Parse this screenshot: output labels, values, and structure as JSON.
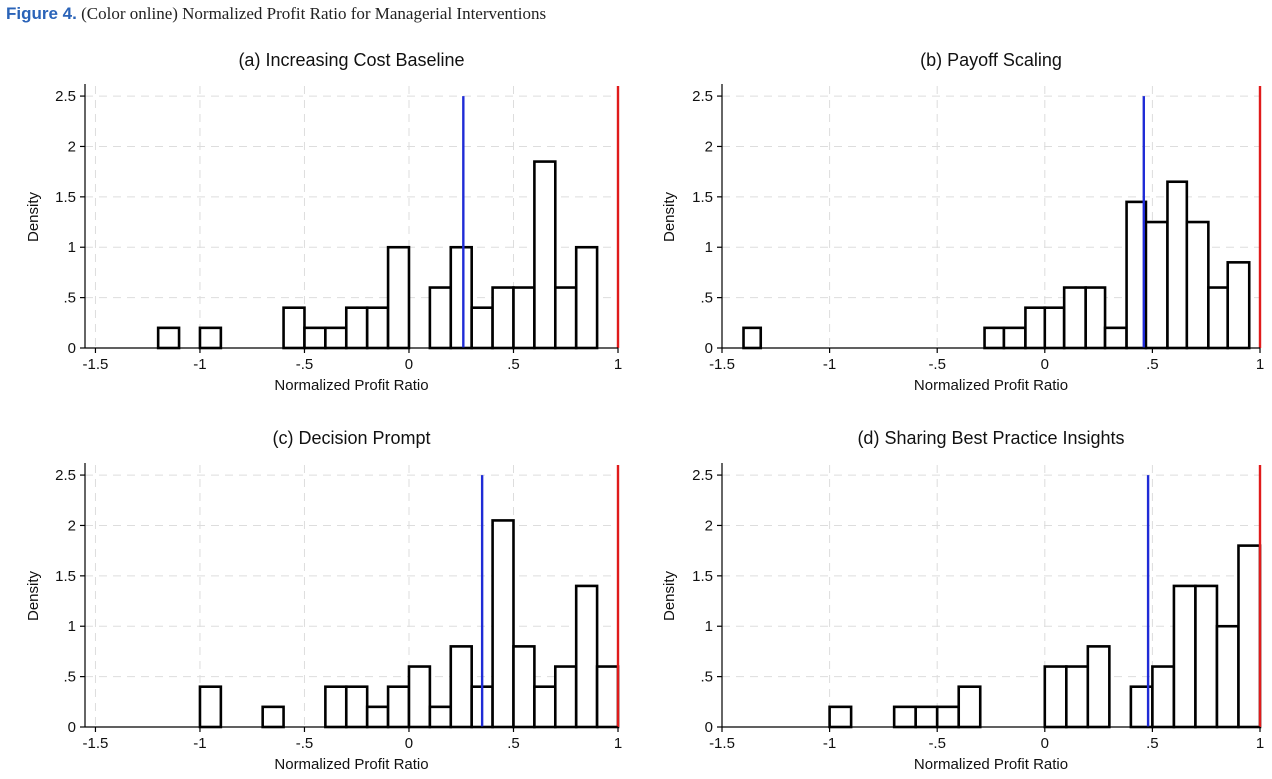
{
  "figure": {
    "label": "Figure 4.",
    "caption": "(Color online) Normalized Profit Ratio for Managerial Interventions"
  },
  "colors": {
    "mean_line": "#1f2bd6",
    "reference_line": "#e01b1b",
    "bar_stroke": "#000000",
    "grid": "#dddddd"
  },
  "chart_data": [
    {
      "type": "bar",
      "title": "(a) Increasing Cost Baseline",
      "xlabel": "Normalized Profit Ratio",
      "ylabel": "Density",
      "xlim": [
        -1.55,
        1.0
      ],
      "ylim": [
        0,
        2.6
      ],
      "xticks": [
        -1.5,
        -1,
        -0.5,
        0,
        0.5,
        1
      ],
      "xtick_labels": [
        "-1.5",
        "-1",
        "-.5",
        "0",
        ".5",
        "1"
      ],
      "yticks": [
        0,
        0.5,
        1,
        1.5,
        2,
        2.5
      ],
      "ytick_labels": [
        "0",
        ".5",
        "1",
        "1.5",
        "2",
        "2.5"
      ],
      "grid": true,
      "bins": [
        {
          "x0": -1.2,
          "x1": -1.1,
          "density": 0.2
        },
        {
          "x0": -1.0,
          "x1": -0.9,
          "density": 0.2
        },
        {
          "x0": -0.6,
          "x1": -0.5,
          "density": 0.4
        },
        {
          "x0": -0.5,
          "x1": -0.4,
          "density": 0.2
        },
        {
          "x0": -0.4,
          "x1": -0.3,
          "density": 0.2
        },
        {
          "x0": -0.3,
          "x1": -0.2,
          "density": 0.4
        },
        {
          "x0": -0.2,
          "x1": -0.1,
          "density": 0.4
        },
        {
          "x0": -0.1,
          "x1": 0.0,
          "density": 1.0
        },
        {
          "x0": 0.1,
          "x1": 0.2,
          "density": 0.6
        },
        {
          "x0": 0.2,
          "x1": 0.3,
          "density": 1.0
        },
        {
          "x0": 0.3,
          "x1": 0.4,
          "density": 0.4
        },
        {
          "x0": 0.4,
          "x1": 0.5,
          "density": 0.6
        },
        {
          "x0": 0.5,
          "x1": 0.6,
          "density": 0.6
        },
        {
          "x0": 0.6,
          "x1": 0.7,
          "density": 1.85
        },
        {
          "x0": 0.7,
          "x1": 0.8,
          "density": 0.6
        },
        {
          "x0": 0.8,
          "x1": 0.9,
          "density": 1.0
        }
      ],
      "vlines": [
        {
          "x": 0.26,
          "color": "#1f2bd6",
          "top": 2.5
        },
        {
          "x": 1.0,
          "color": "#e01b1b",
          "top": 2.6
        }
      ]
    },
    {
      "type": "bar",
      "title": "(b) Payoff Scaling",
      "xlabel": "Normalized Profit Ratio",
      "ylabel": "Density",
      "xlim": [
        -1.5,
        1.0
      ],
      "ylim": [
        0,
        2.6
      ],
      "xticks": [
        -1.5,
        -1,
        -0.5,
        0,
        0.5,
        1
      ],
      "xtick_labels": [
        "-1.5",
        "-1",
        "-.5",
        "0",
        ".5",
        "1"
      ],
      "yticks": [
        0,
        0.5,
        1,
        1.5,
        2,
        2.5
      ],
      "ytick_labels": [
        "0",
        ".5",
        "1",
        "1.5",
        "2",
        "2.5"
      ],
      "grid": true,
      "bins": [
        {
          "x0": -1.4,
          "x1": -1.32,
          "density": 0.2
        },
        {
          "x0": -0.28,
          "x1": -0.19,
          "density": 0.2
        },
        {
          "x0": -0.19,
          "x1": -0.09,
          "density": 0.2
        },
        {
          "x0": -0.09,
          "x1": 0.0,
          "density": 0.4
        },
        {
          "x0": 0.0,
          "x1": 0.09,
          "density": 0.4
        },
        {
          "x0": 0.09,
          "x1": 0.19,
          "density": 0.6
        },
        {
          "x0": 0.19,
          "x1": 0.28,
          "density": 0.6
        },
        {
          "x0": 0.28,
          "x1": 0.38,
          "density": 0.2
        },
        {
          "x0": 0.38,
          "x1": 0.47,
          "density": 1.45
        },
        {
          "x0": 0.47,
          "x1": 0.57,
          "density": 1.25
        },
        {
          "x0": 0.57,
          "x1": 0.66,
          "density": 1.65
        },
        {
          "x0": 0.66,
          "x1": 0.76,
          "density": 1.25
        },
        {
          "x0": 0.76,
          "x1": 0.85,
          "density": 0.6
        },
        {
          "x0": 0.85,
          "x1": 0.95,
          "density": 0.85
        }
      ],
      "vlines": [
        {
          "x": 0.46,
          "color": "#1f2bd6",
          "top": 2.5
        },
        {
          "x": 1.0,
          "color": "#e01b1b",
          "top": 2.6
        }
      ]
    },
    {
      "type": "bar",
      "title": "(c) Decision Prompt",
      "xlabel": "Normalized Profit Ratio",
      "ylabel": "Density",
      "xlim": [
        -1.55,
        1.0
      ],
      "ylim": [
        0,
        2.6
      ],
      "xticks": [
        -1.5,
        -1,
        -0.5,
        0,
        0.5,
        1
      ],
      "xtick_labels": [
        "-1.5",
        "-1",
        "-.5",
        "0",
        ".5",
        "1"
      ],
      "yticks": [
        0,
        0.5,
        1,
        1.5,
        2,
        2.5
      ],
      "ytick_labels": [
        "0",
        ".5",
        "1",
        "1.5",
        "2",
        "2.5"
      ],
      "grid": true,
      "bins": [
        {
          "x0": -1.0,
          "x1": -0.9,
          "density": 0.4
        },
        {
          "x0": -0.7,
          "x1": -0.6,
          "density": 0.2
        },
        {
          "x0": -0.4,
          "x1": -0.3,
          "density": 0.4
        },
        {
          "x0": -0.3,
          "x1": -0.2,
          "density": 0.4
        },
        {
          "x0": -0.2,
          "x1": -0.1,
          "density": 0.2
        },
        {
          "x0": -0.1,
          "x1": 0.0,
          "density": 0.4
        },
        {
          "x0": 0.0,
          "x1": 0.1,
          "density": 0.6
        },
        {
          "x0": 0.1,
          "x1": 0.2,
          "density": 0.2
        },
        {
          "x0": 0.2,
          "x1": 0.3,
          "density": 0.8
        },
        {
          "x0": 0.3,
          "x1": 0.4,
          "density": 0.4
        },
        {
          "x0": 0.4,
          "x1": 0.5,
          "density": 2.05
        },
        {
          "x0": 0.5,
          "x1": 0.6,
          "density": 0.8
        },
        {
          "x0": 0.6,
          "x1": 0.7,
          "density": 0.4
        },
        {
          "x0": 0.7,
          "x1": 0.8,
          "density": 0.6
        },
        {
          "x0": 0.8,
          "x1": 0.9,
          "density": 1.4
        },
        {
          "x0": 0.9,
          "x1": 1.0,
          "density": 0.6
        }
      ],
      "vlines": [
        {
          "x": 0.35,
          "color": "#1f2bd6",
          "top": 2.5
        },
        {
          "x": 1.0,
          "color": "#e01b1b",
          "top": 2.6
        }
      ]
    },
    {
      "type": "bar",
      "title": "(d) Sharing Best Practice Insights",
      "xlabel": "Normalized Profit Ratio",
      "ylabel": "Density",
      "xlim": [
        -1.5,
        1.0
      ],
      "ylim": [
        0,
        2.6
      ],
      "xticks": [
        -1.5,
        -1,
        -0.5,
        0,
        0.5,
        1
      ],
      "xtick_labels": [
        "-1.5",
        "-1",
        "-.5",
        "0",
        ".5",
        "1"
      ],
      "yticks": [
        0,
        0.5,
        1,
        1.5,
        2,
        2.5
      ],
      "ytick_labels": [
        "0",
        ".5",
        "1",
        "1.5",
        "2",
        "2.5"
      ],
      "grid": true,
      "bins": [
        {
          "x0": -1.0,
          "x1": -0.9,
          "density": 0.2
        },
        {
          "x0": -0.7,
          "x1": -0.6,
          "density": 0.2
        },
        {
          "x0": -0.6,
          "x1": -0.5,
          "density": 0.2
        },
        {
          "x0": -0.5,
          "x1": -0.4,
          "density": 0.2
        },
        {
          "x0": -0.4,
          "x1": -0.3,
          "density": 0.4
        },
        {
          "x0": 0.0,
          "x1": 0.1,
          "density": 0.6
        },
        {
          "x0": 0.1,
          "x1": 0.2,
          "density": 0.6
        },
        {
          "x0": 0.2,
          "x1": 0.3,
          "density": 0.8
        },
        {
          "x0": 0.4,
          "x1": 0.5,
          "density": 0.4
        },
        {
          "x0": 0.5,
          "x1": 0.6,
          "density": 0.6
        },
        {
          "x0": 0.6,
          "x1": 0.7,
          "density": 1.4
        },
        {
          "x0": 0.7,
          "x1": 0.8,
          "density": 1.4
        },
        {
          "x0": 0.8,
          "x1": 0.9,
          "density": 1.0
        },
        {
          "x0": 0.9,
          "x1": 1.0,
          "density": 1.8
        }
      ],
      "vlines": [
        {
          "x": 0.48,
          "color": "#1f2bd6",
          "top": 2.5
        },
        {
          "x": 1.0,
          "color": "#e01b1b",
          "top": 2.6
        }
      ]
    }
  ]
}
